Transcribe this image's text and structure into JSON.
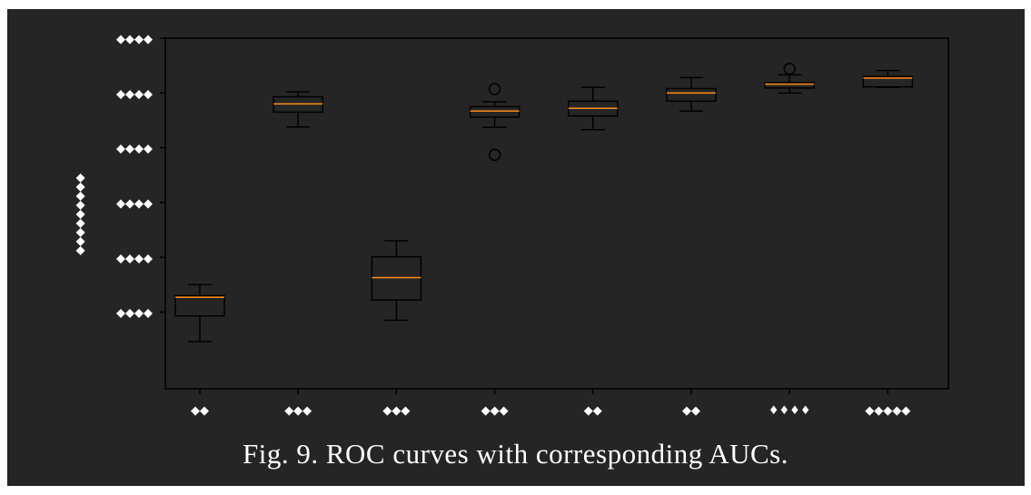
{
  "caption": "Fig. 9. ROC curves with corresponding AUCs.",
  "colors": {
    "background": "#252525",
    "axes": "#000000",
    "median": "#ff8c1a",
    "text": "#ffffff"
  },
  "chart_data": {
    "type": "box",
    "title": "",
    "ylabel": "◆◆◆◆◆◆◆◆◆",
    "xlabel": "",
    "ylim": [
      0.36,
      1.0
    ],
    "yticks": [
      0.5,
      0.6,
      0.7,
      0.8,
      0.9,
      1.0
    ],
    "ytick_labels": [
      "◆◆◆◆",
      "◆◆◆◆",
      "◆◆◆◆",
      "◆◆◆◆",
      "◆◆◆◆",
      "◆◆◆◆"
    ],
    "categories": [
      "◆◆",
      "◆◆◆",
      "◆◆◆",
      "◆◆◆",
      "◆◆",
      "◆◆",
      "♦♦♦♦",
      "◆◆◆◆◆"
    ],
    "grid": false,
    "boxes": [
      {
        "whisker_low": 0.446,
        "q1": 0.493,
        "median": 0.527,
        "q3": 0.53,
        "whisker_high": 0.55,
        "outliers": []
      },
      {
        "whisker_low": 0.838,
        "q1": 0.865,
        "median": 0.88,
        "q3": 0.893,
        "whisker_high": 0.902,
        "outliers": []
      },
      {
        "whisker_low": 0.485,
        "q1": 0.522,
        "median": 0.563,
        "q3": 0.601,
        "whisker_high": 0.63,
        "outliers": []
      },
      {
        "whisker_low": 0.837,
        "q1": 0.856,
        "median": 0.867,
        "q3": 0.875,
        "whisker_high": 0.884,
        "outliers": [
          0.907,
          0.787
        ]
      },
      {
        "whisker_low": 0.833,
        "q1": 0.858,
        "median": 0.872,
        "q3": 0.885,
        "whisker_high": 0.91,
        "outliers": []
      },
      {
        "whisker_low": 0.867,
        "q1": 0.885,
        "median": 0.9,
        "q3": 0.908,
        "whisker_high": 0.928,
        "outliers": []
      },
      {
        "whisker_low": 0.9,
        "q1": 0.909,
        "median": 0.916,
        "q3": 0.919,
        "whisker_high": 0.933,
        "outliers": [
          0.944
        ]
      },
      {
        "whisker_low": 0.91,
        "q1": 0.911,
        "median": 0.927,
        "q3": 0.93,
        "whisker_high": 0.941,
        "outliers": []
      }
    ]
  }
}
